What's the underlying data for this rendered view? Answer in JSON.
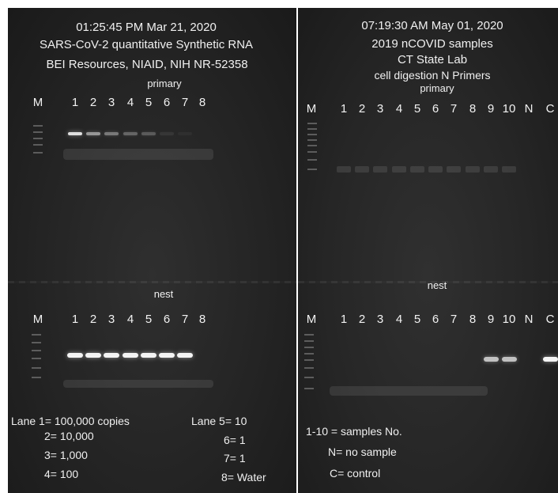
{
  "left": {
    "timestamp": "01:25:45 PM Mar 21, 2020",
    "title_line1": "SARS-CoV-2 quantitative Synthetic RNA",
    "title_line2": "BEI Resources, NIAID, NIH NR-52358",
    "primary_label": "primary",
    "nest_label": "nest",
    "lanes": [
      "M",
      "1",
      "2",
      "3",
      "4",
      "5",
      "6",
      "7",
      "8"
    ],
    "legend": {
      "lane1": "Lane 1= 100,000 copies",
      "lane2": "2=   10,000",
      "lane3": "3=     1,000",
      "lane4": "4=        100",
      "lane5": "Lane 5= 10",
      "lane6": "6=   1",
      "lane7": "7=   1",
      "lane8": "8=   Water"
    },
    "primary_band_intensity": [
      0.9,
      0.55,
      0.4,
      0.3,
      0.25,
      0.08,
      0.04,
      0
    ],
    "nest_band_intensity": [
      1,
      1,
      1,
      1,
      1,
      1,
      1,
      0
    ]
  },
  "right": {
    "timestamp": "07:19:30 AM May 01, 2020",
    "line1": "2019 nCOVID samples",
    "line2": "CT State Lab",
    "line3": "cell digestion N Primers",
    "primary_label": "primary",
    "nest_label": "nest",
    "lanes": [
      "M",
      "1",
      "2",
      "3",
      "4",
      "5",
      "6",
      "7",
      "8",
      "9",
      "10",
      "N",
      "C"
    ],
    "legend": {
      "l1": "1-10 = samples No.",
      "l2": "N= no sample",
      "l3": "C= control"
    },
    "nest_band_intensity": [
      0,
      0,
      0,
      0,
      0,
      0,
      0,
      0,
      0.75,
      0.75,
      0,
      1
    ]
  },
  "colors": {
    "gel": "#262626",
    "band": "#f4f4f4",
    "text": "#f0f0f0"
  }
}
